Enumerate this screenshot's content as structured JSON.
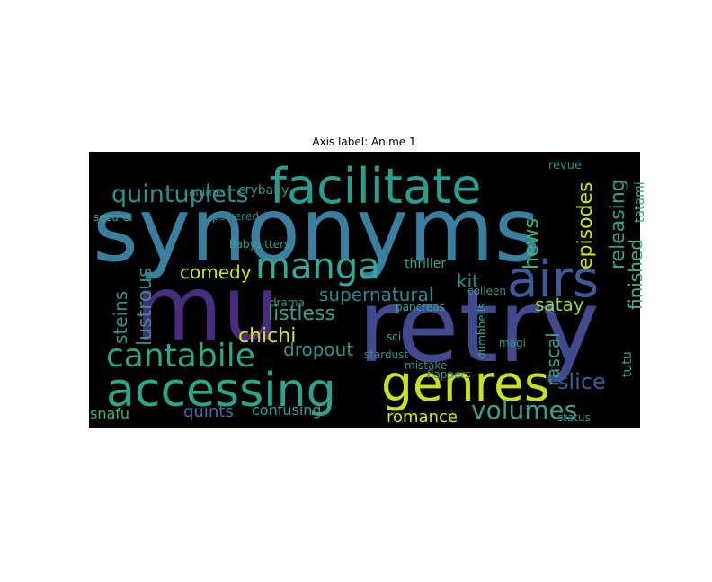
{
  "chart_data": {
    "type": "wordcloud",
    "title": "Axis label: Anime 1",
    "background": "#000000",
    "words": [
      {
        "text": "synonyms",
        "color": "#3b7fa0"
      },
      {
        "text": "retry",
        "color": "#414a8c"
      },
      {
        "text": "mu",
        "color": "#472d7b"
      },
      {
        "text": "facilitate",
        "color": "#2a9d8f"
      },
      {
        "text": "accessing",
        "color": "#2ea58a"
      },
      {
        "text": "genres",
        "color": "#c8e020"
      },
      {
        "text": "manga",
        "color": "#35a89a"
      },
      {
        "text": "airs",
        "color": "#3d5a98"
      },
      {
        "text": "cantabile",
        "color": "#30a58a"
      },
      {
        "text": "quintuplets",
        "color": "#2e8f8c"
      },
      {
        "text": "comedy",
        "color": "#c8e020"
      },
      {
        "text": "lustrous",
        "color": "#3a8c8c"
      },
      {
        "text": "steins",
        "color": "#3a8c8c"
      },
      {
        "text": "supernatural",
        "color": "#2d8a8c"
      },
      {
        "text": "listless",
        "color": "#3b9f8b"
      },
      {
        "text": "chichi",
        "color": "#d8e219"
      },
      {
        "text": "dropout",
        "color": "#3b8f8b"
      },
      {
        "text": "kit",
        "color": "#2d8a8c"
      },
      {
        "text": "hews",
        "color": "#35b779"
      },
      {
        "text": "episodes",
        "color": "#c8e020"
      },
      {
        "text": "releasing",
        "color": "#3b9f8b"
      },
      {
        "text": "finished",
        "color": "#4ab27c"
      },
      {
        "text": "tatami",
        "color": "#3b9f8b"
      },
      {
        "text": "satay",
        "color": "#8fd14f"
      },
      {
        "text": "rascal",
        "color": "#3b9f8b"
      },
      {
        "text": "slice",
        "color": "#3d5a98"
      },
      {
        "text": "volumes",
        "color": "#3b9f8b"
      },
      {
        "text": "romance",
        "color": "#d8e219"
      },
      {
        "text": "quints",
        "color": "#4a6ea0"
      },
      {
        "text": "confusing",
        "color": "#3b9f8b"
      },
      {
        "text": "snafu",
        "color": "#35b779"
      },
      {
        "text": "crybaby",
        "color": "#3b8f8b"
      },
      {
        "text": "revue",
        "color": "#2d8a8c"
      },
      {
        "text": "anime",
        "color": "#3b8f8b"
      },
      {
        "text": "secure",
        "color": "#35a89a"
      },
      {
        "text": "powered",
        "color": "#2d8a8c"
      },
      {
        "text": "babysitters",
        "color": "#3b9f8b"
      },
      {
        "text": "thriller",
        "color": "#35a89a"
      },
      {
        "text": "status",
        "color": "#3b8f8b"
      },
      {
        "text": "tutu",
        "color": "#3b9f8b"
      },
      {
        "text": "mistake",
        "color": "#3b8f8b"
      },
      {
        "text": "drama",
        "color": "#3b8f8b"
      },
      {
        "text": "sci",
        "color": "#35a89a"
      },
      {
        "text": "magi",
        "color": "#3b8f8b"
      },
      {
        "text": "stardust",
        "color": "#2d8a8c"
      },
      {
        "text": "pancreas",
        "color": "#35a89a"
      },
      {
        "text": "colleen",
        "color": "#3b8f8b"
      },
      {
        "text": "dumbbells",
        "color": "#35a89a"
      },
      {
        "text": "flappers",
        "color": "#3b8f8b"
      }
    ]
  }
}
